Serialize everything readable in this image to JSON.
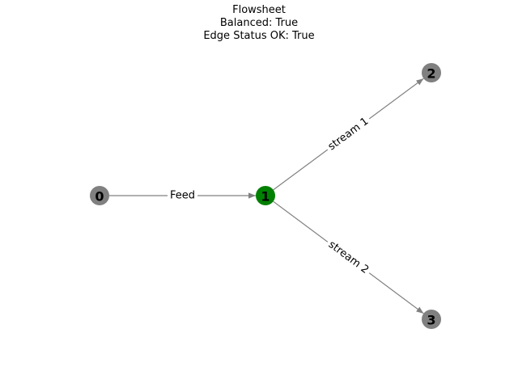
{
  "title": {
    "line1": "Flowsheet",
    "line2": "Balanced: True",
    "line3": "Edge Status OK: True"
  },
  "colors": {
    "node_default": "#808080",
    "node_highlight": "#008000",
    "edge": "#808080",
    "background": "#ffffff"
  },
  "graph": {
    "nodes": [
      {
        "id": "0",
        "label": "0",
        "highlight": false
      },
      {
        "id": "1",
        "label": "1",
        "highlight": true
      },
      {
        "id": "2",
        "label": "2",
        "highlight": false
      },
      {
        "id": "3",
        "label": "3",
        "highlight": false
      }
    ],
    "edges": [
      {
        "from": "0",
        "to": "1",
        "label": "Feed"
      },
      {
        "from": "1",
        "to": "2",
        "label": "stream 1"
      },
      {
        "from": "1",
        "to": "3",
        "label": "stream 2"
      }
    ]
  }
}
